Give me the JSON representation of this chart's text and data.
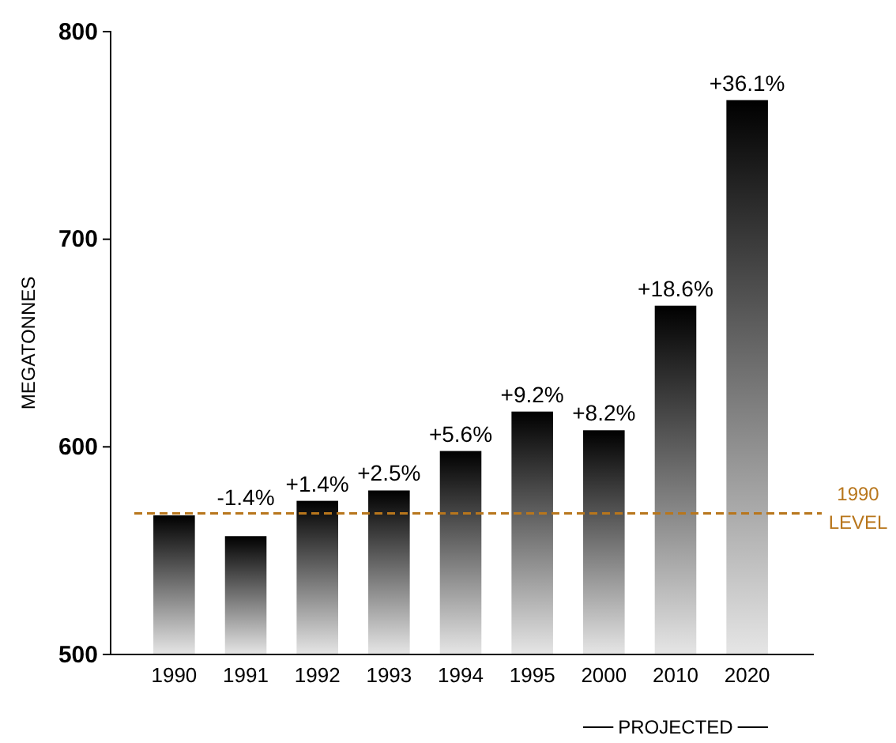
{
  "chart_data": {
    "type": "bar",
    "ylabel": "MEGATONNES",
    "categories": [
      "1990",
      "1991",
      "1992",
      "1993",
      "1994",
      "1995",
      "2000",
      "2010",
      "2020"
    ],
    "values": [
      567,
      557,
      574,
      579,
      598,
      617,
      608,
      668,
      767
    ],
    "color": "#000000",
    "ylim": [
      500,
      800
    ],
    "yticks": [
      500,
      600,
      700,
      800
    ],
    "grid": false,
    "ref_lines": [
      {
        "axis": "y",
        "value": 568,
        "label": "1990 LEVEL",
        "color": "#b8761c",
        "line_style": "dashed"
      }
    ],
    "annotations": [
      {
        "text": "-1.4%",
        "x": "1991",
        "y": 557
      },
      {
        "text": "+1.4%",
        "x": "1992",
        "y": 574
      },
      {
        "text": "+2.5%",
        "x": "1993",
        "y": 579
      },
      {
        "text": "+5.6%",
        "x": "1994",
        "y": 598
      },
      {
        "text": "+9.2%",
        "x": "1995",
        "y": 617
      },
      {
        "text": "+8.2%",
        "x": "2000",
        "y": 608
      },
      {
        "text": "+18.6%",
        "x": "2010",
        "y": 668
      },
      {
        "text": "+36.1%",
        "x": "2020",
        "y": 767
      },
      "PROJECTED"
    ]
  }
}
